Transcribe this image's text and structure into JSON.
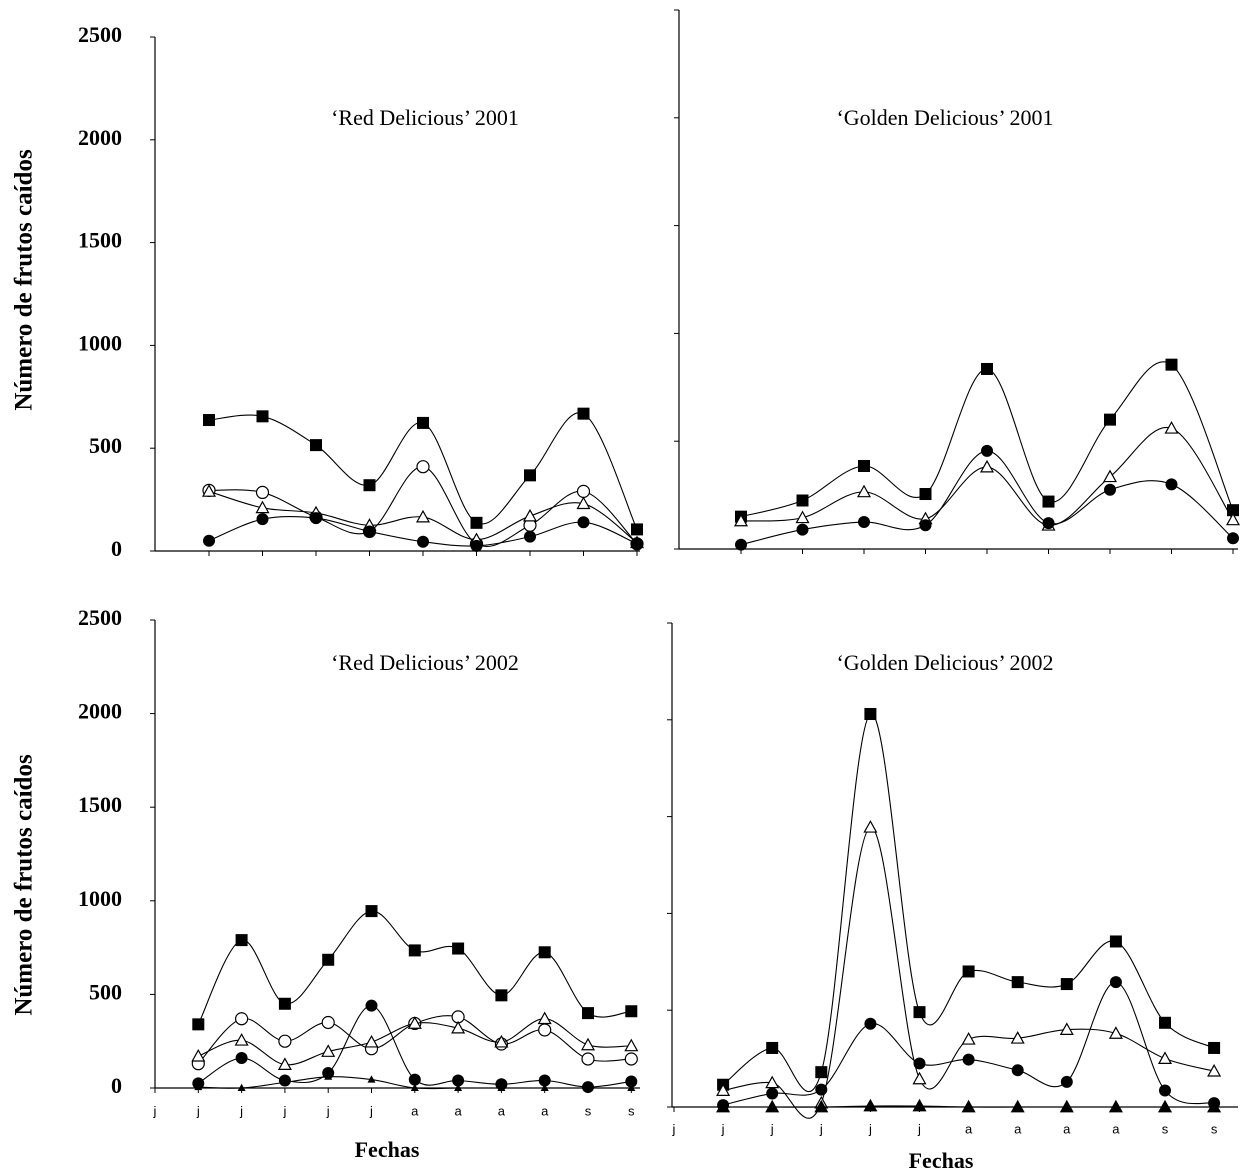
{
  "chart_data": [
    {
      "type": "line",
      "title": "‘Red Delicious’ 2001",
      "ylabel": "Número de frutos caídos",
      "categories": [
        null,
        null,
        null,
        null,
        null,
        null,
        null,
        null,
        null
      ],
      "ylim": [
        0,
        2500
      ],
      "yticks": [
        0,
        500,
        1000,
        1500,
        2000,
        2500
      ],
      "show_ytick_labels": true,
      "series": [
        {
          "marker": "square-filled",
          "color": "#000000",
          "values": [
            637,
            655,
            515,
            320,
            623,
            137,
            368,
            668,
            105
          ]
        },
        {
          "marker": "circle-open",
          "color": "#000000",
          "values": [
            295,
            285,
            165,
            95,
            410,
            35,
            125,
            290,
            35
          ]
        },
        {
          "marker": "triangle-open",
          "color": "#000000",
          "values": [
            290,
            210,
            185,
            125,
            165,
            55,
            170,
            230,
            40
          ]
        },
        {
          "marker": "circle-filled",
          "color": "#000000",
          "values": [
            50,
            155,
            160,
            95,
            45,
            25,
            70,
            140,
            35
          ]
        }
      ]
    },
    {
      "type": "line",
      "title": "‘Golden Delicious’ 2001",
      "categories": [
        null,
        null,
        null,
        null,
        null,
        null,
        null,
        null,
        null
      ],
      "ylim": [
        0,
        2500
      ],
      "yticks": [
        0,
        500,
        1000,
        1500,
        2000,
        2500
      ],
      "show_ytick_labels": false,
      "series": [
        {
          "marker": "square-filled",
          "color": "#000000",
          "values": [
            150,
            225,
            385,
            255,
            835,
            220,
            600,
            855,
            180
          ]
        },
        {
          "marker": "triangle-open",
          "color": "#000000",
          "values": [
            130,
            145,
            265,
            140,
            380,
            110,
            335,
            560,
            135
          ]
        },
        {
          "marker": "circle-filled",
          "color": "#000000",
          "values": [
            20,
            90,
            125,
            110,
            455,
            120,
            275,
            300,
            50
          ]
        }
      ]
    },
    {
      "type": "line",
      "title": "‘Red Delicious’ 2002",
      "ylabel": "Número de frutos caídos",
      "xlabel": "Fechas",
      "categories": [
        "j",
        "j",
        "j",
        "j",
        "j",
        "j",
        "a",
        "a",
        "a",
        "a",
        "s",
        "s"
      ],
      "ylim": [
        0,
        2500
      ],
      "yticks": [
        0,
        500,
        1000,
        1500,
        2000,
        2500
      ],
      "show_ytick_labels": true,
      "series": [
        {
          "marker": "square-filled",
          "color": "#000000",
          "values": [
            null,
            340,
            790,
            450,
            685,
            945,
            735,
            745,
            495,
            725,
            400,
            410
          ]
        },
        {
          "marker": "circle-open",
          "color": "#000000",
          "values": [
            null,
            130,
            370,
            250,
            350,
            210,
            345,
            380,
            235,
            310,
            155,
            155
          ]
        },
        {
          "marker": "triangle-open",
          "color": "#000000",
          "values": [
            null,
            170,
            255,
            125,
            195,
            245,
            345,
            320,
            245,
            370,
            230,
            225
          ]
        },
        {
          "marker": "circle-filled",
          "color": "#000000",
          "values": [
            null,
            25,
            160,
            40,
            80,
            440,
            45,
            40,
            20,
            40,
            5,
            35
          ]
        },
        {
          "marker": "triangle-small",
          "color": "#000000",
          "values": [
            null,
            5,
            0,
            30,
            60,
            45,
            0,
            0,
            0,
            0,
            0,
            0
          ]
        }
      ]
    },
    {
      "type": "line",
      "title": "‘Golden Delicious’ 2002",
      "xlabel": "Fechas",
      "categories": [
        "j",
        "j",
        "j",
        "j",
        "j",
        "j",
        "a",
        "a",
        "a",
        "a",
        "s",
        "s"
      ],
      "ylim": [
        0,
        2500
      ],
      "yticks": [
        0,
        500,
        1000,
        1500,
        2000,
        2500
      ],
      "show_ytick_labels": false,
      "series": [
        {
          "marker": "square-filled",
          "color": "#000000",
          "values": [
            null,
            115,
            305,
            180,
            2030,
            490,
            700,
            645,
            635,
            855,
            435,
            305
          ]
        },
        {
          "marker": "triangle-open",
          "color": "#000000",
          "values": [
            null,
            85,
            125,
            20,
            1445,
            145,
            350,
            355,
            400,
            380,
            250,
            185
          ]
        },
        {
          "marker": "circle-filled",
          "color": "#000000",
          "values": [
            null,
            10,
            70,
            90,
            430,
            225,
            245,
            190,
            130,
            645,
            85,
            20
          ]
        },
        {
          "marker": "triangle-filled",
          "color": "#000000",
          "values": [
            null,
            0,
            0,
            0,
            5,
            5,
            0,
            0,
            0,
            0,
            0,
            0
          ]
        }
      ]
    }
  ]
}
